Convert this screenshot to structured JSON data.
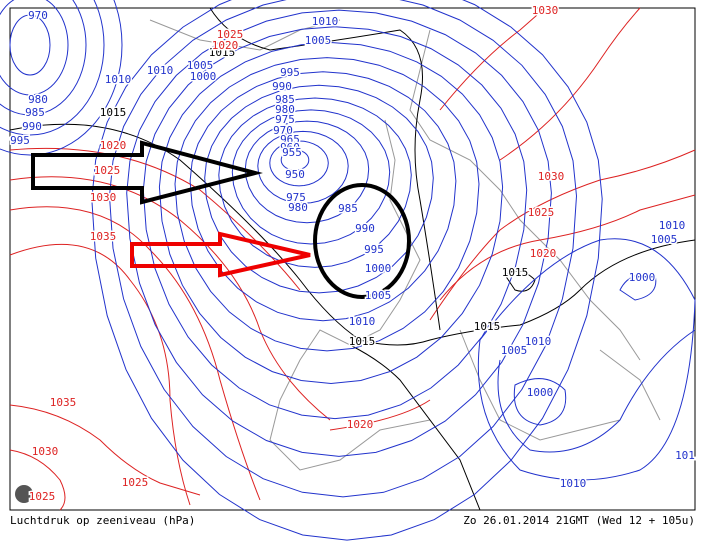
{
  "map": {
    "footer_left": "Luchtdruk op zeeniveau (hPa)",
    "footer_right": "Zo 26.01.2014 21GMT (Wed 12 + 105u)",
    "isobar_labels": [
      "970",
      "1010",
      "1015",
      "1020",
      "1025",
      "1005",
      "1010",
      "1005",
      "1000",
      "995",
      "990",
      "985",
      "980",
      "975",
      "970",
      "965",
      "960",
      "955",
      "950",
      "980",
      "975",
      "985",
      "990",
      "995",
      "1000",
      "1005",
      "1010",
      "1015",
      "1015",
      "1015",
      "1010",
      "980",
      "985",
      "990",
      "995",
      "1015",
      "1020",
      "1025",
      "1030",
      "1035",
      "1035",
      "1030",
      "1025",
      "1025",
      "1020",
      "1020",
      "1025",
      "1030",
      "1030",
      "1010",
      "1005",
      "1000",
      "1010",
      "1005",
      "1000",
      "1010",
      "101"
    ]
  }
}
